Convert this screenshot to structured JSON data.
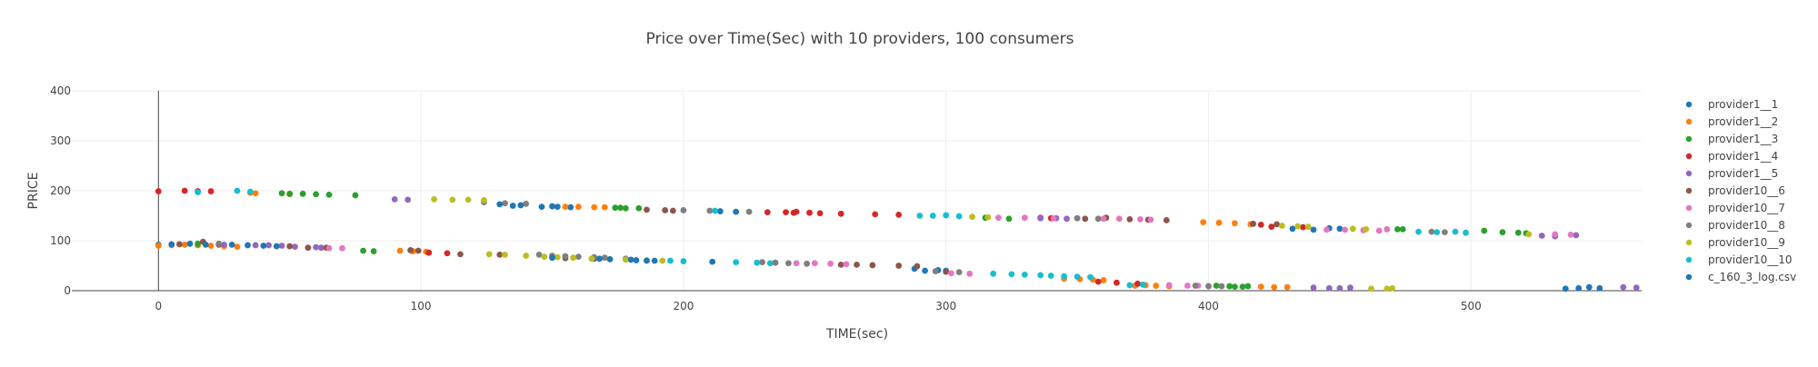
{
  "chart_data": {
    "type": "scatter",
    "title": "Price over Time(Sec) with 10 providers, 100 consumers",
    "xlabel": "TIME(sec)",
    "ylabel": "PRICE",
    "xlim": [
      -33,
      565
    ],
    "ylim": [
      0,
      400
    ],
    "xticks": [
      0,
      100,
      200,
      300,
      400,
      500
    ],
    "yticks": [
      0,
      100,
      200,
      300,
      400
    ],
    "grid": true,
    "legend_position": "right",
    "series": [
      {
        "name": "provider1__1",
        "color": "#1f77b4",
        "points": [
          [
            0,
            92
          ],
          [
            135,
            170
          ],
          [
            146,
            168
          ],
          [
            150,
            169
          ],
          [
            152,
            168
          ],
          [
            157,
            167
          ],
          [
            211,
            58
          ],
          [
            214,
            159
          ],
          [
            220,
            158
          ],
          [
            288,
            44
          ],
          [
            292,
            40
          ],
          [
            297,
            41
          ],
          [
            300,
            40
          ],
          [
            432,
            124
          ],
          [
            440,
            122
          ],
          [
            446,
            125
          ],
          [
            450,
            124
          ],
          [
            536,
            4
          ],
          [
            541,
            5
          ],
          [
            545,
            7
          ],
          [
            549,
            5
          ]
        ]
      },
      {
        "name": "provider1__2",
        "color": "#ff7f0e",
        "points": [
          [
            0,
            90
          ],
          [
            5,
            91
          ],
          [
            10,
            92
          ],
          [
            15,
            91
          ],
          [
            20,
            90
          ],
          [
            25,
            89
          ],
          [
            30,
            88
          ],
          [
            35,
            196
          ],
          [
            37,
            195
          ],
          [
            50,
            193
          ],
          [
            92,
            80
          ],
          [
            97,
            79
          ],
          [
            102,
            78
          ],
          [
            155,
            168
          ],
          [
            160,
            168
          ],
          [
            166,
            167
          ],
          [
            170,
            167
          ],
          [
            345,
            24
          ],
          [
            351,
            23
          ],
          [
            356,
            22
          ],
          [
            360,
            21
          ],
          [
            372,
            10
          ],
          [
            376,
            11
          ],
          [
            380,
            10
          ],
          [
            385,
            9
          ],
          [
            398,
            137
          ],
          [
            404,
            136
          ],
          [
            410,
            135
          ],
          [
            416,
            133
          ],
          [
            420,
            8
          ],
          [
            425,
            7
          ],
          [
            430,
            7
          ]
        ]
      },
      {
        "name": "provider1__3",
        "color": "#2ca02c",
        "points": [
          [
            15,
            94
          ],
          [
            47,
            195
          ],
          [
            50,
            194
          ],
          [
            55,
            194
          ],
          [
            60,
            193
          ],
          [
            65,
            192
          ],
          [
            75,
            191
          ],
          [
            78,
            80
          ],
          [
            82,
            79
          ],
          [
            174,
            166
          ],
          [
            176,
            166
          ],
          [
            178,
            165
          ],
          [
            183,
            165
          ],
          [
            315,
            146
          ],
          [
            324,
            144
          ],
          [
            403,
            10
          ],
          [
            408,
            9
          ],
          [
            410,
            8
          ],
          [
            413,
            8
          ],
          [
            415,
            9
          ],
          [
            468,
            123
          ],
          [
            472,
            123
          ],
          [
            474,
            123
          ],
          [
            505,
            120
          ],
          [
            512,
            117
          ],
          [
            518,
            116
          ],
          [
            521,
            115
          ]
        ]
      },
      {
        "name": "provider1__4",
        "color": "#d62728",
        "points": [
          [
            0,
            199
          ],
          [
            10,
            200
          ],
          [
            15,
            199
          ],
          [
            20,
            199
          ],
          [
            23,
            92
          ],
          [
            103,
            76
          ],
          [
            110,
            75
          ],
          [
            232,
            157
          ],
          [
            239,
            157
          ],
          [
            242,
            156
          ],
          [
            243,
            158
          ],
          [
            248,
            156
          ],
          [
            252,
            155
          ],
          [
            260,
            154
          ],
          [
            273,
            153
          ],
          [
            282,
            152
          ],
          [
            336,
            146
          ],
          [
            340,
            145
          ],
          [
            358,
            18
          ],
          [
            365,
            16
          ],
          [
            373,
            14
          ],
          [
            420,
            132
          ],
          [
            424,
            128
          ],
          [
            436,
            127
          ]
        ]
      },
      {
        "name": "provider1__5",
        "color": "#9467bd",
        "points": [
          [
            25,
            92
          ],
          [
            37,
            91
          ],
          [
            42,
            91
          ],
          [
            47,
            90
          ],
          [
            52,
            88
          ],
          [
            60,
            87
          ],
          [
            62,
            86
          ],
          [
            90,
            183
          ],
          [
            95,
            182
          ],
          [
            336,
            145
          ],
          [
            342,
            145
          ],
          [
            346,
            144
          ],
          [
            350,
            145
          ],
          [
            440,
            6
          ],
          [
            446,
            5
          ],
          [
            450,
            5
          ],
          [
            454,
            6
          ],
          [
            527,
            110
          ],
          [
            532,
            109
          ],
          [
            540,
            111
          ],
          [
            558,
            7
          ],
          [
            563,
            6
          ]
        ]
      },
      {
        "name": "provider10__6",
        "color": "#8c564b",
        "points": [
          [
            8,
            93
          ],
          [
            17,
            98
          ],
          [
            23,
            93
          ],
          [
            50,
            89
          ],
          [
            57,
            86
          ],
          [
            64,
            86
          ],
          [
            96,
            81
          ],
          [
            99,
            80
          ],
          [
            115,
            73
          ],
          [
            130,
            72
          ],
          [
            155,
            65
          ],
          [
            166,
            64
          ],
          [
            186,
            162
          ],
          [
            193,
            161
          ],
          [
            196,
            160
          ],
          [
            260,
            52
          ],
          [
            266,
            52
          ],
          [
            272,
            51
          ],
          [
            282,
            50
          ],
          [
            289,
            49
          ],
          [
            300,
            38
          ],
          [
            353,
            144
          ],
          [
            361,
            146
          ],
          [
            370,
            143
          ],
          [
            377,
            142
          ],
          [
            384,
            141
          ],
          [
            417,
            134
          ],
          [
            426,
            133
          ]
        ]
      },
      {
        "name": "provider10__7",
        "color": "#e377c2",
        "points": [
          [
            65,
            85
          ],
          [
            70,
            85
          ],
          [
            235,
            56
          ],
          [
            243,
            55
          ],
          [
            250,
            55
          ],
          [
            256,
            54
          ],
          [
            262,
            53
          ],
          [
            302,
            35
          ],
          [
            309,
            34
          ],
          [
            320,
            146
          ],
          [
            330,
            146
          ],
          [
            341,
            145
          ],
          [
            360,
            144
          ],
          [
            366,
            144
          ],
          [
            374,
            143
          ],
          [
            378,
            142
          ],
          [
            385,
            11
          ],
          [
            392,
            10
          ],
          [
            396,
            10
          ],
          [
            400,
            9
          ],
          [
            445,
            122
          ],
          [
            452,
            122
          ],
          [
            459,
            121
          ],
          [
            465,
            120
          ],
          [
            468,
            123
          ],
          [
            532,
            113
          ],
          [
            538,
            112
          ]
        ]
      },
      {
        "name": "provider10__8",
        "color": "#7f7f7f",
        "points": [
          [
            23,
            94
          ],
          [
            124,
            177
          ],
          [
            132,
            175
          ],
          [
            140,
            174
          ],
          [
            145,
            72
          ],
          [
            150,
            70
          ],
          [
            155,
            69
          ],
          [
            160,
            68
          ],
          [
            166,
            67
          ],
          [
            170,
            66
          ],
          [
            178,
            64
          ],
          [
            200,
            161
          ],
          [
            210,
            160
          ],
          [
            225,
            158
          ],
          [
            230,
            57
          ],
          [
            235,
            56
          ],
          [
            240,
            55
          ],
          [
            247,
            54
          ],
          [
            296,
            39
          ],
          [
            305,
            37
          ],
          [
            350,
            145
          ],
          [
            358,
            144
          ],
          [
            395,
            10
          ],
          [
            400,
            9
          ],
          [
            405,
            9
          ],
          [
            485,
            118
          ],
          [
            490,
            117
          ]
        ]
      },
      {
        "name": "provider10__9",
        "color": "#bcbd22",
        "points": [
          [
            105,
            183
          ],
          [
            112,
            182
          ],
          [
            118,
            182
          ],
          [
            124,
            181
          ],
          [
            126,
            73
          ],
          [
            132,
            72
          ],
          [
            140,
            70
          ],
          [
            147,
            68
          ],
          [
            152,
            67
          ],
          [
            158,
            66
          ],
          [
            165,
            64
          ],
          [
            172,
            63
          ],
          [
            178,
            62
          ],
          [
            186,
            61
          ],
          [
            192,
            60
          ],
          [
            310,
            148
          ],
          [
            316,
            147
          ],
          [
            428,
            130
          ],
          [
            434,
            129
          ],
          [
            438,
            128
          ],
          [
            455,
            124
          ],
          [
            460,
            123
          ],
          [
            462,
            4
          ],
          [
            468,
            4
          ],
          [
            470,
            5
          ],
          [
            522,
            113
          ]
        ]
      },
      {
        "name": "provider10__10",
        "color": "#17becf",
        "points": [
          [
            15,
            197
          ],
          [
            30,
            200
          ],
          [
            35,
            198
          ],
          [
            195,
            60
          ],
          [
            200,
            59
          ],
          [
            212,
            160
          ],
          [
            220,
            57
          ],
          [
            228,
            56
          ],
          [
            233,
            55
          ],
          [
            290,
            150
          ],
          [
            295,
            150
          ],
          [
            300,
            151
          ],
          [
            305,
            149
          ],
          [
            318,
            34
          ],
          [
            325,
            33
          ],
          [
            330,
            32
          ],
          [
            336,
            31
          ],
          [
            340,
            30
          ],
          [
            345,
            29
          ],
          [
            350,
            28
          ],
          [
            355,
            27
          ],
          [
            370,
            11
          ],
          [
            375,
            12
          ],
          [
            480,
            118
          ],
          [
            487,
            117
          ],
          [
            494,
            118
          ],
          [
            498,
            116
          ]
        ]
      },
      {
        "name": "c_160_3_log.csv",
        "color": "#1f77b4",
        "points": [
          [
            5,
            93
          ],
          [
            12,
            94
          ],
          [
            18,
            92
          ],
          [
            28,
            92
          ],
          [
            34,
            91
          ],
          [
            40,
            90
          ],
          [
            45,
            89
          ],
          [
            130,
            173
          ],
          [
            138,
            171
          ],
          [
            150,
            66
          ],
          [
            168,
            64
          ],
          [
            172,
            63
          ],
          [
            180,
            62
          ],
          [
            182,
            61
          ],
          [
            186,
            60
          ],
          [
            189,
            60
          ]
        ]
      }
    ]
  }
}
